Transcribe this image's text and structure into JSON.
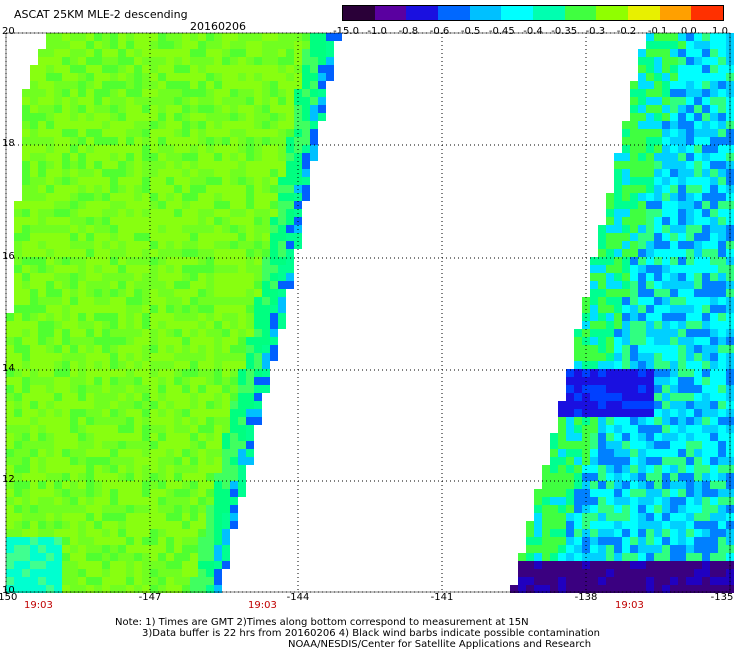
{
  "header": {
    "title": "ASCAT 25KM MLE-2 descending",
    "date": "20160206"
  },
  "colorbar": {
    "labels": [
      "-15.0",
      "-1.0",
      "-0.8",
      "-0.6",
      "-0.5",
      "-0.45",
      "-0.4",
      "-0.35",
      "-0.3",
      "-0.2",
      "-0.1",
      "0.0",
      "1.0"
    ],
    "colors": [
      "#2a0038",
      "#5a00a0",
      "#1a10e0",
      "#0068ff",
      "#00c0ff",
      "#00ffff",
      "#00ffb0",
      "#40ff40",
      "#90ff00",
      "#e8f000",
      "#ffa000",
      "#ff3000"
    ]
  },
  "axes": {
    "lat_labels": [
      "20",
      "18",
      "16",
      "14",
      "12",
      "10"
    ],
    "lon_labels": [
      "-150",
      "-147",
      "-144",
      "-141",
      "-138",
      "-135"
    ],
    "times": [
      "19:03",
      "19:03",
      "19:03"
    ]
  },
  "notes": {
    "line1": "Note: 1) Times are GMT 2)Times along bottom correspond to measurement at 15N",
    "line2": "3)Data buffer is 22 hrs from 20160206 4) Black wind barbs indicate possible contamination",
    "line3": "NOAA/NESDIS/Center for Satellite Applications and Research"
  }
}
